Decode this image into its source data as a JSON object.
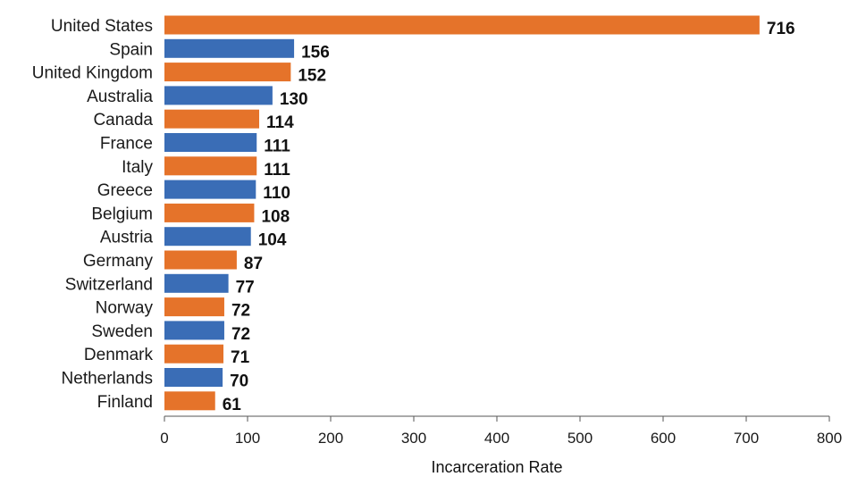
{
  "chart_data": {
    "type": "bar",
    "orientation": "horizontal",
    "title": "",
    "xlabel": "Incarceration Rate",
    "ylabel": "",
    "xlim": [
      0,
      800
    ],
    "xticks": [
      0,
      100,
      200,
      300,
      400,
      500,
      600,
      700,
      800
    ],
    "grid": false,
    "legend": "none",
    "categories": [
      "United States",
      "Spain",
      "United Kingdom",
      "Australia",
      "Canada",
      "France",
      "Italy",
      "Greece",
      "Belgium",
      "Austria",
      "Germany",
      "Switzerland",
      "Norway",
      "Sweden",
      "Denmark",
      "Netherlands",
      "Finland"
    ],
    "values": [
      716,
      156,
      152,
      130,
      114,
      111,
      111,
      110,
      108,
      104,
      87,
      77,
      72,
      72,
      71,
      70,
      61
    ],
    "value_labels": [
      "716",
      "156",
      "152",
      "130",
      "114",
      "111",
      "111",
      "110",
      "108",
      "104",
      "87",
      "77",
      "72",
      "72",
      "71",
      "70",
      "61"
    ],
    "bar_colors": [
      "#E5732A",
      "#3A6DB6",
      "#E5732A",
      "#3A6DB6",
      "#E5732A",
      "#3A6DB6",
      "#E5732A",
      "#3A6DB6",
      "#E5732A",
      "#3A6DB6",
      "#E5732A",
      "#3A6DB6",
      "#E5732A",
      "#3A6DB6",
      "#E5732A",
      "#3A6DB6",
      "#E5732A"
    ]
  }
}
